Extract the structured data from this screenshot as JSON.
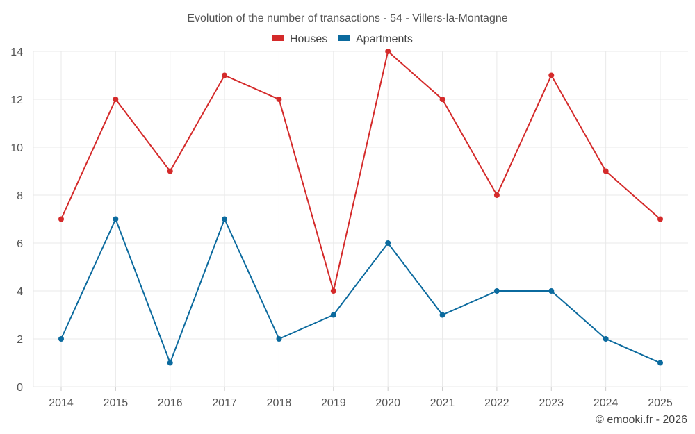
{
  "chart_data": {
    "type": "line",
    "title": "Evolution of the number of transactions - 54 - Villers-la-Montagne",
    "xlabel": "",
    "ylabel": "",
    "categories": [
      "2014",
      "2015",
      "2016",
      "2017",
      "2018",
      "2019",
      "2020",
      "2021",
      "2022",
      "2023",
      "2024",
      "2025"
    ],
    "ylim": [
      0,
      14
    ],
    "yticks": [
      0,
      2,
      4,
      6,
      8,
      10,
      12,
      14
    ],
    "grid": true,
    "legend_position": "top-center",
    "series": [
      {
        "name": "Houses",
        "color": "#d42a2a",
        "values": [
          7,
          12,
          9,
          13,
          12,
          4,
          14,
          12,
          8,
          13,
          9,
          7
        ]
      },
      {
        "name": "Apartments",
        "color": "#0b6a9e",
        "values": [
          2,
          7,
          1,
          7,
          2,
          3,
          6,
          3,
          4,
          4,
          2,
          1
        ]
      }
    ]
  },
  "credit": "© emooki.fr - 2026"
}
